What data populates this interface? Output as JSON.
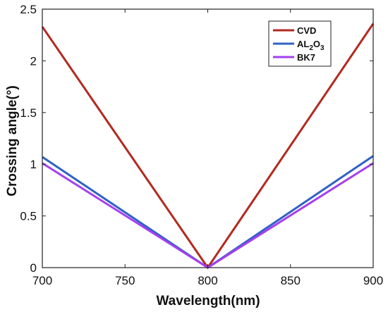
{
  "chart_data": {
    "type": "line",
    "title": "",
    "xlabel": "Wavelength(nm)",
    "ylabel": "Crossing angle(°)",
    "xlim": [
      700,
      900
    ],
    "ylim": [
      0,
      2.5
    ],
    "xticks": [
      700,
      750,
      800,
      850,
      900
    ],
    "yticks": [
      0,
      0.5,
      1,
      1.5,
      2,
      2.5
    ],
    "xtick_labels": [
      "700",
      "750",
      "800",
      "850",
      "900"
    ],
    "ytick_labels": [
      "0",
      "0.5",
      "1",
      "1.5",
      "2",
      "2.5"
    ],
    "grid": false,
    "legend_position": "top-right",
    "series": [
      {
        "name": "CVD",
        "color": "#b22a1f",
        "x": [
          700,
          800,
          900
        ],
        "y": [
          2.33,
          0.0,
          2.36
        ]
      },
      {
        "name": "AL2O3",
        "name_parts": [
          "AL",
          "2",
          "O",
          "3"
        ],
        "color": "#2f62c4",
        "x": [
          700,
          800,
          900
        ],
        "y": [
          1.07,
          0.0,
          1.08
        ]
      },
      {
        "name": "BK7",
        "color": "#a63ff0",
        "x": [
          700,
          800,
          900
        ],
        "y": [
          1.01,
          0.0,
          1.01
        ]
      }
    ]
  }
}
